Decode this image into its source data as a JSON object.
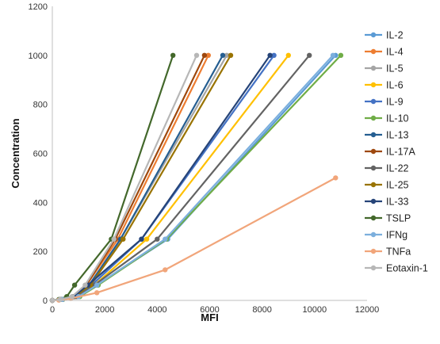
{
  "chart_data": {
    "type": "line",
    "title": "",
    "xlabel": "MFI",
    "ylabel": "Concentration",
    "xlim": [
      0,
      12000
    ],
    "ylim": [
      0,
      1200
    ],
    "x_ticks": [
      "0",
      "2000",
      "4000",
      "6000",
      "8000",
      "10000",
      "12000"
    ],
    "y_ticks": [
      "0",
      "200",
      "400",
      "600",
      "800",
      "1000",
      "1200"
    ],
    "grid": false,
    "legend_position": "right",
    "series": [
      {
        "name": "IL-2",
        "color": "#5b9bd5",
        "points": [
          [
            0,
            0
          ],
          [
            400,
            4
          ],
          [
            1000,
            15.6
          ],
          [
            1700,
            62.5
          ],
          [
            4400,
            250
          ],
          [
            10800,
            1000
          ]
        ]
      },
      {
        "name": "IL-4",
        "color": "#ed7d31",
        "points": [
          [
            0,
            0
          ],
          [
            300,
            4
          ],
          [
            800,
            15.6
          ],
          [
            1300,
            62.5
          ],
          [
            2500,
            250
          ],
          [
            5950,
            1000
          ]
        ]
      },
      {
        "name": "IL-5",
        "color": "#a5a5a5",
        "points": [
          [
            0,
            0
          ],
          [
            350,
            4
          ],
          [
            900,
            15.6
          ],
          [
            1500,
            62.5
          ],
          [
            2600,
            250
          ],
          [
            6650,
            1000
          ]
        ]
      },
      {
        "name": "IL-6",
        "color": "#ffc000",
        "points": [
          [
            0,
            0
          ],
          [
            350,
            4
          ],
          [
            900,
            15.6
          ],
          [
            1600,
            62.5
          ],
          [
            3600,
            250
          ],
          [
            9000,
            1000
          ]
        ]
      },
      {
        "name": "IL-9",
        "color": "#4472c4",
        "points": [
          [
            0,
            0
          ],
          [
            350,
            4
          ],
          [
            900,
            15.6
          ],
          [
            1500,
            62.5
          ],
          [
            3400,
            250
          ],
          [
            8450,
            1000
          ]
        ]
      },
      {
        "name": "IL-10",
        "color": "#70ad47",
        "points": [
          [
            0,
            0
          ],
          [
            400,
            4
          ],
          [
            1050,
            15.6
          ],
          [
            1750,
            62.5
          ],
          [
            4350,
            250
          ],
          [
            11000,
            1000
          ]
        ]
      },
      {
        "name": "IL-13",
        "color": "#255e91",
        "points": [
          [
            0,
            0
          ],
          [
            300,
            4
          ],
          [
            800,
            15.6
          ],
          [
            1400,
            62.5
          ],
          [
            2600,
            250
          ],
          [
            6500,
            1000
          ]
        ]
      },
      {
        "name": "IL-17A",
        "color": "#9e480e",
        "points": [
          [
            0,
            0
          ],
          [
            300,
            4
          ],
          [
            800,
            15.6
          ],
          [
            1300,
            62.5
          ],
          [
            2400,
            250
          ],
          [
            5800,
            1000
          ]
        ]
      },
      {
        "name": "IL-22",
        "color": "#636363",
        "points": [
          [
            0,
            0
          ],
          [
            380,
            4
          ],
          [
            950,
            15.6
          ],
          [
            1600,
            62.5
          ],
          [
            4000,
            250
          ],
          [
            9800,
            1000
          ]
        ]
      },
      {
        "name": "IL-25",
        "color": "#997300",
        "points": [
          [
            0,
            0
          ],
          [
            320,
            4
          ],
          [
            850,
            15.6
          ],
          [
            1450,
            62.5
          ],
          [
            2700,
            250
          ],
          [
            6800,
            1000
          ]
        ]
      },
      {
        "name": "IL-33",
        "color": "#264478",
        "points": [
          [
            0,
            0
          ],
          [
            320,
            4
          ],
          [
            820,
            15.6
          ],
          [
            1350,
            62.5
          ],
          [
            3400,
            250
          ],
          [
            8300,
            1000
          ]
        ]
      },
      {
        "name": "TSLP",
        "color": "#43682b",
        "points": [
          [
            0,
            0
          ],
          [
            250,
            4
          ],
          [
            550,
            15.6
          ],
          [
            850,
            62.5
          ],
          [
            2250,
            250
          ],
          [
            4600,
            1000
          ]
        ]
      },
      {
        "name": "IFNg",
        "color": "#7cafdd",
        "points": [
          [
            0,
            0
          ],
          [
            380,
            4
          ],
          [
            1000,
            15.6
          ],
          [
            1700,
            62.5
          ],
          [
            4300,
            250
          ],
          [
            10700,
            1000
          ]
        ]
      },
      {
        "name": "TNFa",
        "color": "#f1a57a",
        "points": [
          [
            0,
            0
          ],
          [
            250,
            1
          ],
          [
            700,
            7.8
          ],
          [
            1700,
            31.25
          ],
          [
            4300,
            125
          ],
          [
            10800,
            500
          ]
        ]
      },
      {
        "name": "Eotaxin-1",
        "color": "#b7b7b7",
        "points": [
          [
            0,
            0
          ],
          [
            300,
            4
          ],
          [
            750,
            15.6
          ],
          [
            1250,
            62.5
          ],
          [
            2350,
            250
          ],
          [
            5500,
            1000
          ]
        ]
      }
    ]
  }
}
